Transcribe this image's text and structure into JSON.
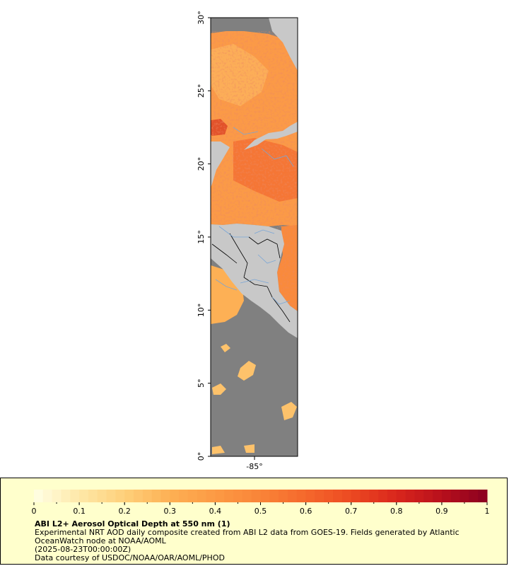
{
  "map": {
    "lat_ticks": [
      "0°",
      "5°",
      "10°",
      "15°",
      "20°",
      "25°",
      "30°"
    ],
    "lon_ticks": [
      "-85°"
    ],
    "colors": {
      "ocean_nodata": "#808080",
      "land": "#c8c8c8",
      "border": "#000000",
      "rivers": "#7aa6d6"
    }
  },
  "legend": {
    "colorbar_ticks": [
      "0",
      "0.1",
      "0.2",
      "0.3",
      "0.4",
      "0.5",
      "0.6",
      "0.7",
      "0.8",
      "0.9",
      "1"
    ],
    "colorbar_range": [
      0,
      1
    ],
    "colorbar_colors": [
      "#ffffe5",
      "#fee8a8",
      "#fed07a",
      "#fdb054",
      "#fc9a44",
      "#f98438",
      "#f5682c",
      "#ec4a22",
      "#d9261c",
      "#b8101c",
      "#8a0020"
    ],
    "title": "ABI L2+ Aerosol Optical Depth at 550 nm (1)",
    "description": "Experimental NRT AOD daily composite created from ABI L2 data from GOES-19. Fields generated by Atlantic OceanWatch node at NOAA/AOML",
    "timestamp": "(2025-08-23T00:00:00Z)",
    "credit": "Data courtesy of USDOC/NOAA/OAR/AOML/PHOD"
  }
}
